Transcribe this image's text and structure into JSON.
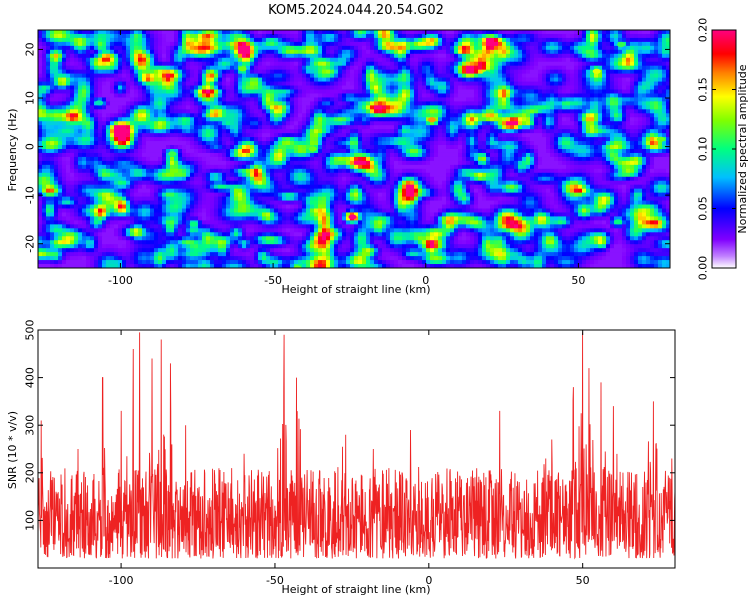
{
  "title": "KOM5.2024.044.20.54.G02",
  "chart_data": [
    {
      "type": "heatmap",
      "title": "KOM5.2024.044.20.54.G02",
      "xlabel": "Height of straight line (km)",
      "ylabel": "Frequency (Hz)",
      "xlim": [
        -127,
        80
      ],
      "ylim": [
        -25,
        24
      ],
      "xticks": [
        -100,
        -50,
        0,
        50
      ],
      "yticks": [
        -20,
        -10,
        0,
        10,
        20
      ],
      "colorbar": {
        "label": "Normalized spectral amplitude",
        "range": [
          0.0,
          0.2
        ],
        "ticks": [
          "0.00",
          "0.05",
          "0.10",
          "0.15",
          "0.20"
        ],
        "colors": [
          "#ffffff",
          "#8000ff",
          "#0000ff",
          "#00bfff",
          "#00ff80",
          "#80ff00",
          "#ffff00",
          "#ff8000",
          "#ff0000",
          "#ff0080"
        ]
      },
      "hotspots": [
        {
          "x": -24,
          "y": -14.5,
          "value": 0.2
        },
        {
          "x": 2,
          "y": 5.5,
          "value": 0.16
        },
        {
          "x": 56,
          "y": 15.5,
          "value": 0.14
        },
        {
          "x": -37,
          "y": -0.5,
          "value": 0.12
        },
        {
          "x": -60,
          "y": 16,
          "value": 0.12
        },
        {
          "x": 64,
          "y": 21,
          "value": 0.11
        },
        {
          "x": 77,
          "y": 1.5,
          "value": 0.12
        },
        {
          "x": -83,
          "y": -1.5,
          "value": 0.11
        },
        {
          "x": -42,
          "y": -25,
          "value": 0.12
        },
        {
          "x": -76,
          "y": -16,
          "value": 0.1
        },
        {
          "x": 63,
          "y": -15.5,
          "value": 0.1
        },
        {
          "x": -107,
          "y": 9,
          "value": 0.09
        },
        {
          "x": 20,
          "y": 15,
          "value": 0.09
        }
      ]
    },
    {
      "type": "line",
      "xlabel": "Height of straight line (km)",
      "ylabel": "SNR (10 * v/v)",
      "xlim": [
        -127,
        80
      ],
      "ylim": [
        0,
        500
      ],
      "xticks": [
        -100,
        -50,
        0,
        50
      ],
      "yticks": [
        100,
        200,
        300,
        400,
        500
      ],
      "series": [
        {
          "color": "#ee2222",
          "summary": "dense noisy trace, baseline ~100 with spread 20-220",
          "peaks": [
            {
              "x": -126,
              "y": 310
            },
            {
              "x": -114,
              "y": 250
            },
            {
              "x": -106,
              "y": 400
            },
            {
              "x": -100,
              "y": 330
            },
            {
              "x": -96,
              "y": 460
            },
            {
              "x": -94,
              "y": 495
            },
            {
              "x": -90,
              "y": 440
            },
            {
              "x": -87,
              "y": 480
            },
            {
              "x": -84,
              "y": 430
            },
            {
              "x": -79,
              "y": 300
            },
            {
              "x": -60,
              "y": 240
            },
            {
              "x": -47,
              "y": 490
            },
            {
              "x": -43,
              "y": 400
            },
            {
              "x": -27,
              "y": 280
            },
            {
              "x": -18,
              "y": 250
            },
            {
              "x": -6,
              "y": 290
            },
            {
              "x": 23,
              "y": 330
            },
            {
              "x": 40,
              "y": 270
            },
            {
              "x": 47,
              "y": 380
            },
            {
              "x": 50,
              "y": 495
            },
            {
              "x": 52,
              "y": 420
            },
            {
              "x": 56,
              "y": 390
            },
            {
              "x": 60,
              "y": 340
            },
            {
              "x": 73,
              "y": 350
            },
            {
              "x": 79,
              "y": 230
            }
          ]
        }
      ]
    }
  ]
}
